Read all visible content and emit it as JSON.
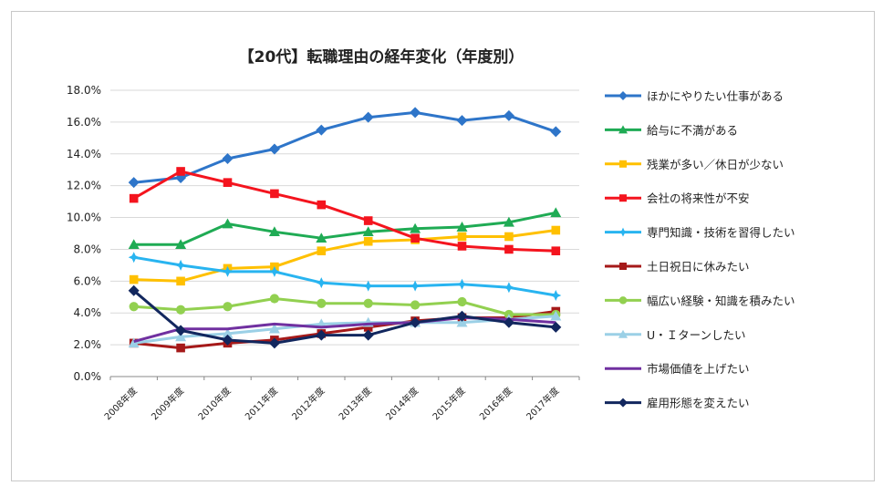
{
  "chart_data": {
    "type": "line",
    "title": "【20代】転職理由の経年変化（年度別）",
    "xlabel": "",
    "ylabel": "",
    "ylim": [
      0,
      18
    ],
    "y_ticks": [
      "0.0%",
      "2.0%",
      "4.0%",
      "6.0%",
      "8.0%",
      "10.0%",
      "12.0%",
      "14.0%",
      "16.0%",
      "18.0%"
    ],
    "categories": [
      "2008年度",
      "2009年度",
      "2010年度",
      "2011年度",
      "2012年度",
      "2013年度",
      "2014年度",
      "2015年度",
      "2016年度",
      "2017年度"
    ],
    "legend_position": "right",
    "grid": "horizontal",
    "series": [
      {
        "name": "ほかにやりたい仕事がある",
        "color": "#2e75c9",
        "marker": "diamond",
        "values": [
          12.2,
          12.5,
          13.7,
          14.3,
          15.5,
          16.3,
          16.6,
          16.1,
          16.4,
          15.4
        ]
      },
      {
        "name": "給与に不満がある",
        "color": "#1fab54",
        "marker": "triangle",
        "values": [
          8.3,
          8.3,
          9.6,
          9.1,
          8.7,
          9.1,
          9.3,
          9.4,
          9.7,
          10.3
        ]
      },
      {
        "name": "残業が多い／休日が少ない",
        "color": "#ffc000",
        "marker": "square",
        "values": [
          6.1,
          6.0,
          6.8,
          6.9,
          7.9,
          8.5,
          8.6,
          8.8,
          8.8,
          9.2
        ]
      },
      {
        "name": "会社の将来性が不安",
        "color": "#f4141e",
        "marker": "square",
        "values": [
          11.2,
          12.9,
          12.2,
          11.5,
          10.8,
          9.8,
          8.7,
          8.2,
          8.0,
          7.9
        ]
      },
      {
        "name": "専門知識・技術を習得したい",
        "color": "#28b4f0",
        "marker": "star",
        "values": [
          7.5,
          7.0,
          6.6,
          6.6,
          5.9,
          5.7,
          5.7,
          5.8,
          5.6,
          5.1
        ]
      },
      {
        "name": "土日祝日に休みたい",
        "color": "#a51919",
        "marker": "square",
        "values": [
          2.1,
          1.8,
          2.1,
          2.3,
          2.7,
          3.1,
          3.5,
          3.7,
          3.7,
          4.1
        ]
      },
      {
        "name": "幅広い経験・知識を積みたい",
        "color": "#92d050",
        "marker": "circle",
        "values": [
          4.4,
          4.2,
          4.4,
          4.9,
          4.6,
          4.6,
          4.5,
          4.7,
          3.9,
          3.9
        ]
      },
      {
        "name": "U・Ｉターンしたい",
        "color": "#9bd0e6",
        "marker": "triangle",
        "values": [
          2.1,
          2.5,
          2.7,
          3.0,
          3.3,
          3.4,
          3.4,
          3.4,
          3.6,
          3.8
        ]
      },
      {
        "name": "市場価値を上げたい",
        "color": "#7030a0",
        "marker": "none",
        "values": [
          2.2,
          3.0,
          3.0,
          3.3,
          3.1,
          3.3,
          3.4,
          3.7,
          3.6,
          3.4
        ]
      },
      {
        "name": "雇用形態を変えたい",
        "color": "#12275e",
        "marker": "diamond",
        "values": [
          5.4,
          2.9,
          2.3,
          2.1,
          2.6,
          2.6,
          3.4,
          3.8,
          3.4,
          3.1
        ]
      }
    ]
  }
}
